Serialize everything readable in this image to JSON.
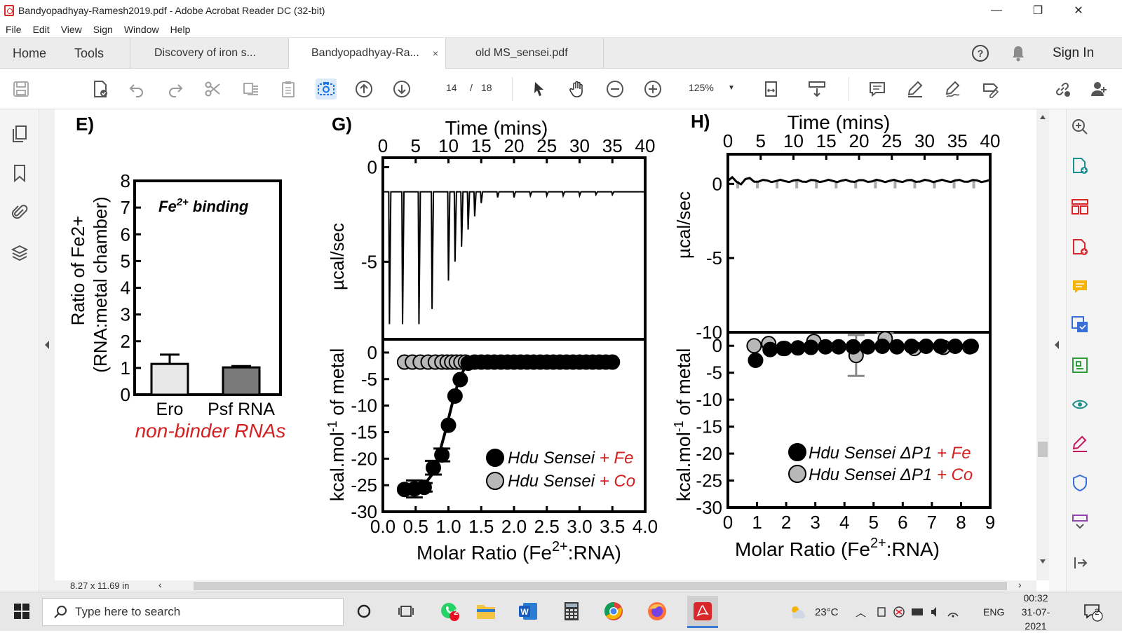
{
  "window": {
    "title": "Bandyopadhyay-Ramesh2019.pdf - Adobe Acrobat Reader DC (32-bit)",
    "controls": {
      "minimize": "—",
      "maximize": "❐",
      "close": "✕"
    }
  },
  "menu": [
    "File",
    "Edit",
    "View",
    "Sign",
    "Window",
    "Help"
  ],
  "tabs": {
    "home": "Home",
    "tools": "Tools",
    "docs": [
      {
        "label": "Discovery of iron s...",
        "active": false
      },
      {
        "label": "Bandyopadhyay-Ra...",
        "active": true,
        "close": "×"
      },
      {
        "label": "old MS_sensei.pdf",
        "active": false
      }
    ],
    "help_icon": "help-icon",
    "bell_icon": "bell-icon",
    "sign_in": "Sign In"
  },
  "toolbar": {
    "page_current": "14",
    "page_sep": "/",
    "page_total": "18",
    "zoom": "125%",
    "accent": "#1473e6"
  },
  "figure": {
    "panel_e": {
      "label": "E)",
      "ylabel_line1": "Ratio of Fe2+",
      "ylabel_line2": "(RNA:metal chamber)",
      "inset_title_prefix": "Fe",
      "inset_title_sup": "2+",
      "inset_title_suffix": " binding",
      "caption": "non-binder RNAs",
      "caption_color": "#d32020"
    },
    "panel_g": {
      "label": "G)",
      "top_xlabel": "Time (mins)",
      "top_ylabel": "µcal/sec",
      "bottom_ylabel_a": "kcal.mol",
      "bottom_ylabel_sup": "-1",
      "bottom_ylabel_b": " of metal",
      "bottom_xlabel_a": "Molar Ratio (Fe",
      "bottom_xlabel_sup": "2+",
      "bottom_xlabel_b": ":RNA)",
      "legend": [
        {
          "prefix": "Hdu Sensei",
          "suffix": " + Fe",
          "fill": "#000000"
        },
        {
          "prefix": "Hdu Sensei",
          "suffix": " + Co",
          "fill": "#b8b8b8"
        }
      ]
    },
    "panel_h": {
      "label": "H)",
      "top_xlabel": "Time (mins)",
      "top_ylabel": "µcal/sec",
      "bottom_ylabel_a": "kcal.mol",
      "bottom_ylabel_sup": "-1",
      "bottom_ylabel_b": " of metal",
      "bottom_xlabel_a": "Molar Ratio (Fe",
      "bottom_xlabel_sup": "2+",
      "bottom_xlabel_b": ":RNA)",
      "legend": [
        {
          "prefix": "Hdu Sensei ΔP1",
          "suffix": " + Fe",
          "fill": "#000000"
        },
        {
          "prefix": "Hdu Sensei ΔP1",
          "suffix": " + Co",
          "fill": "#b8b8b8"
        }
      ]
    },
    "legend_suffix_color": "#d32020"
  },
  "chart_data": [
    {
      "id": "E",
      "type": "bar",
      "categories": [
        "Ero",
        "Psf RNA"
      ],
      "values": [
        1.15,
        1.02
      ],
      "errors": [
        0.35,
        0.05
      ],
      "colors": [
        "#e8e8e8",
        "#7a7a7a"
      ],
      "yticks": [
        0,
        1,
        2,
        3,
        4,
        5,
        6,
        7,
        8
      ],
      "ylim": [
        0,
        8
      ]
    },
    {
      "id": "G-top",
      "type": "line",
      "xlim": [
        0,
        40
      ],
      "xticks": [
        0,
        5,
        10,
        15,
        20,
        25,
        30,
        35,
        40
      ],
      "ylim": [
        -9.1,
        0.5
      ],
      "yticks": [
        0,
        -5
      ],
      "baseline": -1.3,
      "peaks": [
        {
          "t": 1.0,
          "y": -8.3
        },
        {
          "t": 3.0,
          "y": -8.3
        },
        {
          "t": 5.5,
          "y": -8.3
        },
        {
          "t": 7.5,
          "y": -7.5
        },
        {
          "t": 10.0,
          "y": -6.0
        },
        {
          "t": 11.0,
          "y": -5.0
        },
        {
          "t": 12.0,
          "y": -4.2
        },
        {
          "t": 13.0,
          "y": -3.3
        },
        {
          "t": 14.0,
          "y": -2.6
        },
        {
          "t": 15.0,
          "y": -1.9
        },
        {
          "t": 17.5,
          "y": -1.6
        },
        {
          "t": 20.0,
          "y": -1.6
        },
        {
          "t": 22.5,
          "y": -1.5
        },
        {
          "t": 25.0,
          "y": -1.5
        },
        {
          "t": 27.5,
          "y": -1.5
        },
        {
          "t": 30.0,
          "y": -1.5
        },
        {
          "t": 32.5,
          "y": -1.45
        },
        {
          "t": 35.0,
          "y": -1.45
        }
      ]
    },
    {
      "id": "G-bottom",
      "type": "scatter",
      "xlim": [
        0,
        4
      ],
      "xticks": [
        "0.0",
        "0.5",
        "1.0",
        "1.5",
        "2.0",
        "2.5",
        "3.0",
        "3.5",
        "4.0"
      ],
      "ylim": [
        -30,
        2.5
      ],
      "yticks": [
        0,
        -5,
        -10,
        -15,
        -20,
        -25,
        -30
      ],
      "series": [
        {
          "name": "Hdu Sensei + Fe",
          "fill": "#000000",
          "points": [
            [
              0.33,
              -25.8
            ],
            [
              0.48,
              -25.7
            ],
            [
              0.63,
              -25.4
            ],
            [
              0.77,
              -21.7
            ],
            [
              0.9,
              -19.3
            ],
            [
              1.0,
              -13.7
            ],
            [
              1.1,
              -8.2
            ],
            [
              1.18,
              -5.1
            ],
            [
              1.3,
              -2.0
            ],
            [
              1.4,
              -1.8
            ],
            [
              1.5,
              -1.8
            ],
            [
              1.6,
              -1.8
            ],
            [
              1.7,
              -1.8
            ],
            [
              1.8,
              -1.8
            ],
            [
              1.9,
              -1.8
            ],
            [
              2.0,
              -1.8
            ],
            [
              2.1,
              -1.8
            ],
            [
              2.2,
              -1.8
            ],
            [
              2.3,
              -1.8
            ],
            [
              2.4,
              -1.8
            ],
            [
              2.5,
              -1.8
            ],
            [
              2.6,
              -1.8
            ],
            [
              2.7,
              -1.8
            ],
            [
              2.8,
              -1.8
            ],
            [
              2.9,
              -1.8
            ],
            [
              3.0,
              -1.8
            ],
            [
              3.1,
              -1.8
            ],
            [
              3.2,
              -1.8
            ],
            [
              3.3,
              -1.8
            ],
            [
              3.4,
              -1.8
            ],
            [
              3.5,
              -1.8
            ]
          ],
          "fit": [
            [
              0.33,
              -25.8
            ],
            [
              0.6,
              -25.4
            ],
            [
              0.75,
              -23.0
            ],
            [
              0.85,
              -19.5
            ],
            [
              0.95,
              -15.0
            ],
            [
              1.05,
              -10.0
            ],
            [
              1.15,
              -5.5
            ],
            [
              1.25,
              -2.8
            ],
            [
              1.4,
              -1.9
            ],
            [
              3.5,
              -1.8
            ]
          ],
          "error_points": [
            [
              0.48,
              1.6
            ],
            [
              0.63,
              0.8
            ],
            [
              0.77,
              1.3
            ],
            [
              0.9,
              1.2
            ]
          ]
        },
        {
          "name": "Hdu Sensei + Co",
          "fill": "#b8b8b8",
          "points": [
            [
              0.33,
              -1.8
            ],
            [
              0.45,
              -1.8
            ],
            [
              0.57,
              -1.8
            ],
            [
              0.69,
              -1.8
            ],
            [
              0.8,
              -1.8
            ],
            [
              0.9,
              -1.8
            ],
            [
              0.98,
              -1.8
            ],
            [
              1.05,
              -1.8
            ],
            [
              1.12,
              -1.8
            ],
            [
              1.19,
              -1.8
            ],
            [
              1.26,
              -1.8
            ]
          ]
        }
      ]
    },
    {
      "id": "H-top",
      "type": "line",
      "xlim": [
        0,
        40
      ],
      "xticks": [
        0,
        5,
        10,
        15,
        20,
        25,
        30,
        35,
        40
      ],
      "ylim": [
        -10,
        2
      ],
      "yticks": [
        0,
        -5,
        -10
      ],
      "baseline": 0.2,
      "gray_peaks": [
        1.5,
        4.5,
        7.5,
        10.5,
        13.5,
        16.5,
        19.5,
        22.5,
        25.5,
        28.5,
        31.5,
        34.5,
        37.5
      ]
    },
    {
      "id": "H-bottom",
      "type": "scatter",
      "xlim": [
        0,
        9
      ],
      "xticks": [
        0,
        1,
        2,
        3,
        4,
        5,
        6,
        7,
        8,
        9
      ],
      "ylim": [
        -30,
        2.5
      ],
      "yticks": [
        0,
        -5,
        -10,
        -15,
        -20,
        -25,
        -30
      ],
      "series": [
        {
          "name": "Hdu Sensei ΔP1 + Fe",
          "fill": "#000000",
          "points": [
            [
              0.95,
              -2.7
            ],
            [
              1.45,
              -0.7
            ],
            [
              1.9,
              -0.5
            ],
            [
              2.4,
              -0.4
            ],
            [
              2.85,
              -0.3
            ],
            [
              3.35,
              -0.2
            ],
            [
              3.8,
              -0.2
            ],
            [
              4.3,
              -0.2
            ],
            [
              4.8,
              -0.2
            ],
            [
              5.3,
              -0.1
            ],
            [
              5.8,
              -0.2
            ],
            [
              6.3,
              -0.1
            ],
            [
              6.8,
              -0.1
            ],
            [
              7.3,
              -0.1
            ],
            [
              7.8,
              -0.1
            ],
            [
              8.35,
              -0.1
            ]
          ]
        },
        {
          "name": "Hdu Sensei ΔP1 + Co",
          "fill": "#b8b8b8",
          "points": [
            [
              0.9,
              0.0
            ],
            [
              1.4,
              0.4
            ],
            [
              1.95,
              -0.5
            ],
            [
              2.95,
              0.8
            ],
            [
              4.4,
              -1.8
            ],
            [
              5.4,
              1.3
            ],
            [
              6.4,
              -0.5
            ],
            [
              7.4,
              -0.3
            ],
            [
              8.3,
              -0.2
            ]
          ],
          "error_points": [
            [
              4.4,
              3.8
            ],
            [
              5.4,
              1.0
            ]
          ]
        }
      ]
    }
  ],
  "statusbar": {
    "page_size": "8.27 x 11.69 in"
  },
  "taskbar": {
    "search_placeholder": "Type here to search",
    "whatsapp_badge": "2",
    "weather": "23°C",
    "language": "ENG",
    "time": "00:32",
    "date": "31-07-2021",
    "notifications": "2"
  }
}
